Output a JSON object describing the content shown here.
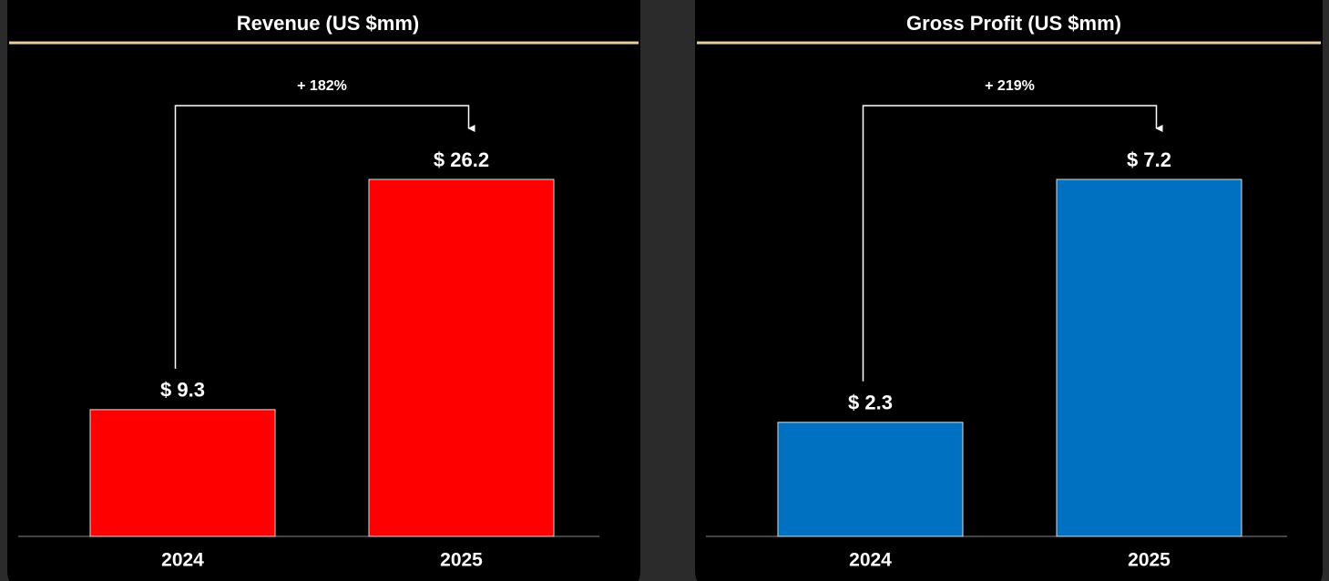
{
  "chart_data": [
    {
      "type": "bar",
      "title": "Revenue (US $mm)",
      "categories": [
        "2024",
        "2025"
      ],
      "values": [
        9.3,
        26.2
      ],
      "value_labels": [
        "$ 9.3",
        "$ 26.2"
      ],
      "color": "#ff0000",
      "annotation": "+ 182%"
    },
    {
      "type": "bar",
      "title": "Gross Profit (US $mm)",
      "categories": [
        "2024",
        "2025"
      ],
      "values": [
        2.3,
        7.2
      ],
      "value_labels": [
        "$ 2.3",
        "$ 7.2"
      ],
      "color": "#0070c0",
      "annotation": "+ 219%"
    }
  ]
}
